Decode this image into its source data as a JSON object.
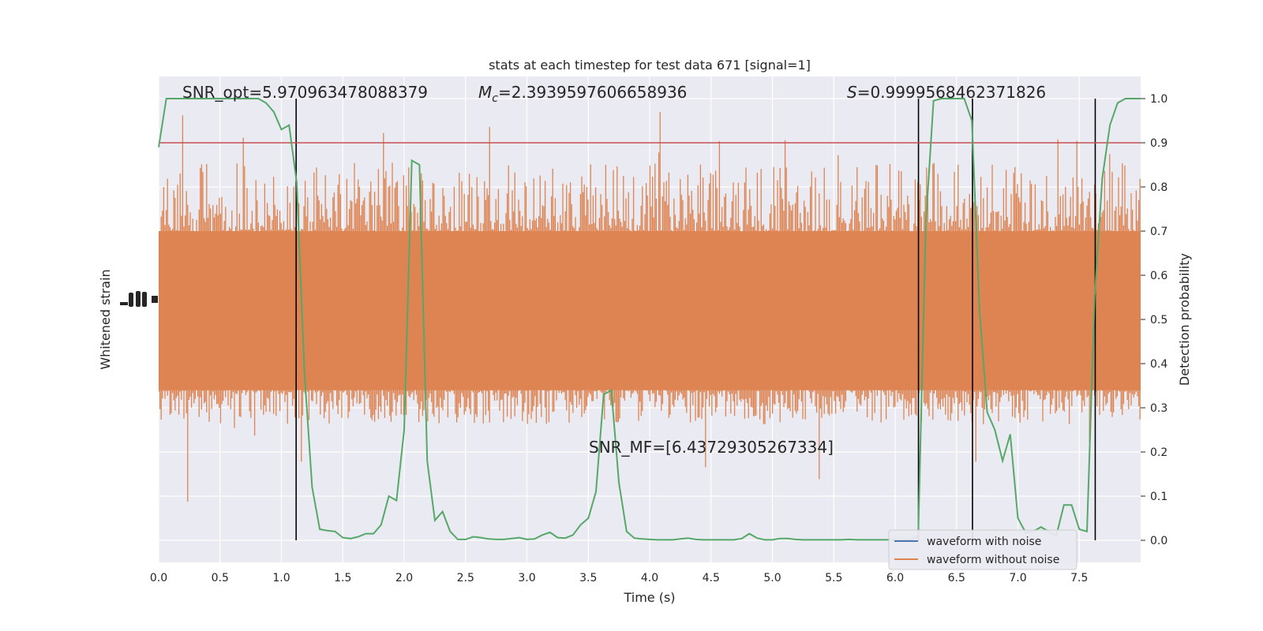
{
  "chart_data": {
    "type": "line",
    "title": "stats at each timestep for test data 671 [signal=1]",
    "xlabel": "Time (s)",
    "ylabel_left": "Whitened strain",
    "ylabel_right": "Detection probability",
    "xlim": [
      0.0,
      8.0
    ],
    "ylim_right": [
      -0.05,
      1.05
    ],
    "x_ticks": [
      "0.0",
      "0.5",
      "1.0",
      "1.5",
      "2.0",
      "2.5",
      "3.0",
      "3.5",
      "4.0",
      "4.5",
      "5.0",
      "5.5",
      "6.0",
      "6.5",
      "7.0",
      "7.5"
    ],
    "y_ticks_right": [
      "0.0",
      "0.1",
      "0.2",
      "0.3",
      "0.4",
      "0.5",
      "0.6",
      "0.7",
      "0.8",
      "0.9",
      "1.0"
    ],
    "grid": true,
    "background": "#eaeaf2",
    "annotations": {
      "snr_opt": "SNR_opt=5.970963478088379",
      "mc_symbol": "M",
      "mc_sub": "c",
      "mc_value": "=2.3939597606658936",
      "s_symbol": "S",
      "s_value": "=0.9999568462371826",
      "snr_mf": "SNR_MF=[6.43729305267334]"
    },
    "threshold": {
      "value": 0.9,
      "color": "#c44e52"
    },
    "vertical_lines": [
      1.12,
      6.19,
      6.63,
      7.63
    ],
    "legend": {
      "placement": "lower-right",
      "entries": [
        {
          "label": "waveform with noise",
          "color": "#4c72b0"
        },
        {
          "label": "waveform without noise",
          "color": "#dd8452"
        }
      ]
    },
    "strain_color": "#dd8452",
    "probability_color": "#55a868",
    "probability": {
      "x": [
        0.0,
        0.0625,
        0.125,
        0.1875,
        0.25,
        0.3125,
        0.375,
        0.4375,
        0.5,
        0.5625,
        0.625,
        0.6875,
        0.75,
        0.8125,
        0.875,
        0.9375,
        1.0,
        1.0625,
        1.125,
        1.1875,
        1.25,
        1.3125,
        1.375,
        1.4375,
        1.5,
        1.5625,
        1.625,
        1.6875,
        1.75,
        1.8125,
        1.875,
        1.9375,
        2.0,
        2.0625,
        2.125,
        2.1875,
        2.25,
        2.3125,
        2.375,
        2.4375,
        2.5,
        2.5625,
        2.625,
        2.6875,
        2.75,
        2.8125,
        2.875,
        2.9375,
        3.0,
        3.0625,
        3.125,
        3.1875,
        3.25,
        3.3125,
        3.375,
        3.4375,
        3.5,
        3.5625,
        3.625,
        3.6875,
        3.75,
        3.8125,
        3.875,
        3.9375,
        4.0,
        4.0625,
        4.125,
        4.1875,
        4.25,
        4.3125,
        4.375,
        4.4375,
        4.5,
        4.5625,
        4.625,
        4.6875,
        4.75,
        4.8125,
        4.875,
        4.9375,
        5.0,
        5.0625,
        5.125,
        5.1875,
        5.25,
        5.3125,
        5.375,
        5.4375,
        5.5,
        5.5625,
        5.625,
        5.6875,
        5.75,
        5.8125,
        5.875,
        5.9375,
        6.0,
        6.0625,
        6.125,
        6.1875,
        6.25,
        6.3125,
        6.375,
        6.4375,
        6.5,
        6.5625,
        6.625,
        6.6875,
        6.75,
        6.8125,
        6.875,
        6.9375,
        7.0,
        7.0625,
        7.125,
        7.1875,
        7.25,
        7.3125,
        7.375,
        7.4375,
        7.5,
        7.5625,
        7.625,
        7.6875,
        7.75,
        7.8125,
        7.875,
        7.9375
      ],
      "y": [
        0.89,
        1.0,
        1.0,
        1.0,
        1.0,
        1.0,
        1.0,
        1.0,
        1.0,
        1.0,
        1.0,
        1.0,
        1.0,
        1.0,
        0.99,
        0.97,
        0.93,
        0.94,
        0.81,
        0.38,
        0.12,
        0.025,
        0.022,
        0.02,
        0.006,
        0.004,
        0.008,
        0.015,
        0.015,
        0.035,
        0.1,
        0.09,
        0.25,
        0.86,
        0.85,
        0.18,
        0.045,
        0.065,
        0.02,
        0.002,
        0.002,
        0.008,
        0.006,
        0.003,
        0.002,
        0.002,
        0.004,
        0.006,
        0.002,
        0.003,
        0.012,
        0.018,
        0.006,
        0.005,
        0.012,
        0.035,
        0.05,
        0.11,
        0.33,
        0.34,
        0.13,
        0.02,
        0.005,
        0.003,
        0.002,
        0.001,
        0.001,
        0.001,
        0.003,
        0.005,
        0.002,
        0.001,
        0.001,
        0.001,
        0.001,
        0.001,
        0.004,
        0.015,
        0.005,
        0.001,
        0.001,
        0.004,
        0.004,
        0.002,
        0.001,
        0.001,
        0.001,
        0.001,
        0.001,
        0.001,
        0.002,
        0.001,
        0.001,
        0.001,
        0.001,
        0.001,
        0.002,
        0.001,
        0.001,
        0.01,
        0.72,
        0.995,
        1.0,
        1.0,
        1.0,
        1.0,
        0.95,
        0.52,
        0.29,
        0.25,
        0.18,
        0.24,
        0.05,
        0.018,
        0.02,
        0.03,
        0.02,
        0.01,
        0.08,
        0.08,
        0.025,
        0.02,
        0.55,
        0.82,
        0.94,
        0.99,
        1.0,
        1.0
      ],
      "y_last": 1.0
    },
    "strain_envelope": {
      "inner_top_prob": 0.7,
      "inner_bottom_prob": 0.34,
      "outer_top_prob": 0.86,
      "outer_bottom_prob": 0.26
    }
  }
}
